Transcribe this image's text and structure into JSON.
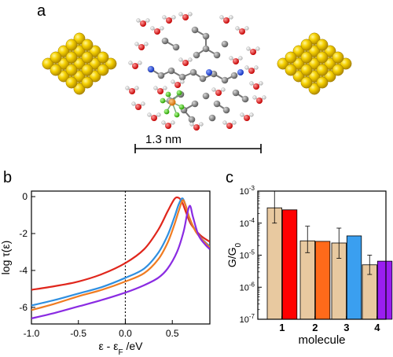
{
  "panels": {
    "a": {
      "letter": "a",
      "scale_label": "1.3 nm"
    },
    "b": {
      "letter": "b"
    },
    "c": {
      "letter": "c"
    }
  },
  "chart_data": [
    {
      "panel": "b",
      "type": "line",
      "xlabel": "ε - ε",
      "xlabel_sub": "F",
      "xlabel_unit": " /eV",
      "ylabel": "log τ(ε)",
      "xlim": [
        -1.0,
        0.9
      ],
      "ylim": [
        -6.9,
        0.3
      ],
      "xticks": [
        -1.0,
        -0.5,
        0.0,
        0.5
      ],
      "xtick_labels": [
        "-1.0",
        "-0.5",
        "0.0",
        "0.5"
      ],
      "yticks": [
        0,
        -2,
        -4,
        -6
      ],
      "ytick_labels": [
        "0",
        "-2",
        "-4",
        "-6"
      ],
      "fermi_line_x": 0.0,
      "series": [
        {
          "color": "#e0261c",
          "x": [
            -1.0,
            -0.75,
            -0.5,
            -0.25,
            0.0,
            0.2,
            0.35,
            0.45,
            0.52,
            0.56,
            0.6,
            0.65,
            0.7,
            0.8,
            0.9
          ],
          "y": [
            -5.05,
            -4.85,
            -4.6,
            -4.2,
            -3.6,
            -2.85,
            -1.8,
            -0.8,
            -0.15,
            -0.05,
            -0.25,
            -0.9,
            -1.5,
            -2.1,
            -2.45
          ]
        },
        {
          "color": "#2f8fe0",
          "x": [
            -1.0,
            -0.75,
            -0.5,
            -0.25,
            0.0,
            0.2,
            0.35,
            0.45,
            0.52,
            0.57,
            0.61,
            0.65,
            0.7,
            0.8,
            0.9
          ],
          "y": [
            -5.9,
            -5.6,
            -5.25,
            -4.9,
            -4.4,
            -3.9,
            -3.05,
            -2.1,
            -1.15,
            -0.4,
            -0.1,
            -0.6,
            -1.4,
            -2.2,
            -2.7
          ]
        },
        {
          "color": "#f07c22",
          "x": [
            -1.0,
            -0.75,
            -0.5,
            -0.25,
            0.0,
            0.2,
            0.35,
            0.45,
            0.52,
            0.57,
            0.61,
            0.64,
            0.68,
            0.75,
            0.85,
            0.9
          ],
          "y": [
            -6.15,
            -5.8,
            -5.4,
            -5.05,
            -4.6,
            -4.15,
            -3.4,
            -2.5,
            -1.55,
            -0.75,
            -0.2,
            -0.45,
            -1.1,
            -1.9,
            -2.5,
            -2.75
          ]
        },
        {
          "color": "#8a2be2",
          "x": [
            -1.0,
            -0.75,
            -0.5,
            -0.25,
            0.0,
            0.2,
            0.35,
            0.45,
            0.55,
            0.62,
            0.66,
            0.69,
            0.72,
            0.78,
            0.85,
            0.9
          ],
          "y": [
            -6.6,
            -6.3,
            -5.95,
            -5.6,
            -5.2,
            -4.8,
            -4.4,
            -3.9,
            -3.0,
            -1.9,
            -0.9,
            -0.5,
            -1.1,
            -2.1,
            -2.6,
            -2.85
          ]
        }
      ]
    },
    {
      "panel": "c",
      "type": "bar",
      "ylabel": "G/G",
      "ylabel_sub": "0",
      "xlabel": "molecule",
      "yscale": "log",
      "ylim": [
        1e-07,
        0.001
      ],
      "ytick_exponents": [
        -3,
        -4,
        -5,
        -6,
        -7
      ],
      "category_labels": [
        "1",
        "2",
        "3",
        "4"
      ],
      "bars": [
        {
          "category": "1",
          "kind": "experiment",
          "value": 0.0003,
          "err_low": 0.0001,
          "err_high": 0.001,
          "color": "#e8c9a0"
        },
        {
          "category": "1",
          "kind": "theory",
          "value": 0.00026,
          "color": "#ff0000"
        },
        {
          "category": "2",
          "kind": "experiment",
          "value": 2.8e-05,
          "err_low": 1.2e-05,
          "err_high": 8e-05,
          "color": "#e8c9a0"
        },
        {
          "category": "2",
          "kind": "theory",
          "value": 2.7e-05,
          "color": "#ff6a1a"
        },
        {
          "category": "3",
          "kind": "experiment",
          "value": 2.4e-05,
          "err_low": 8e-06,
          "err_high": 7e-05,
          "color": "#e8c9a0"
        },
        {
          "category": "3",
          "kind": "theory",
          "value": 4e-05,
          "color": "#3a9ff0"
        },
        {
          "category": "4",
          "kind": "experiment",
          "value": 5e-06,
          "err_low": 2.5e-06,
          "err_high": 1e-05,
          "color": "#e8c9a0"
        },
        {
          "category": "4",
          "kind": "theory",
          "value": 6.5e-06,
          "color": "#9a1ef0"
        }
      ]
    }
  ]
}
